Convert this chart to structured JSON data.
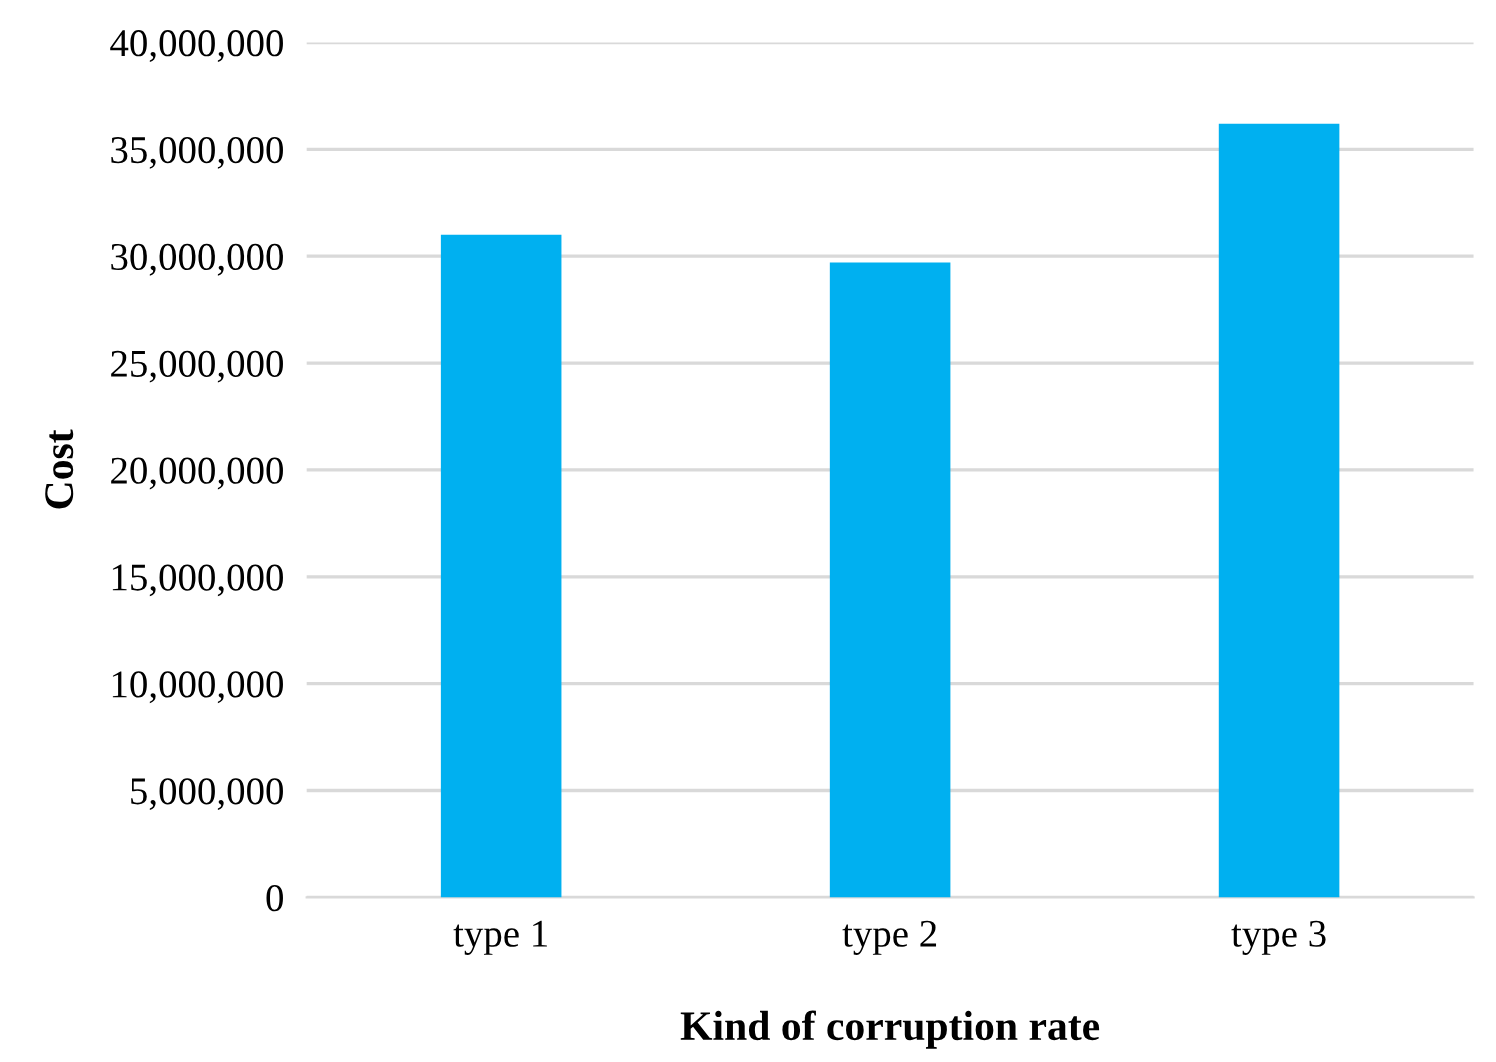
{
  "chart_data": {
    "type": "bar",
    "xlabel": "Kind of corruption rate",
    "ylabel": "Cost",
    "categories": [
      "type 1",
      "type 2",
      "type 3"
    ],
    "values": [
      31000000,
      29700000,
      36200000
    ],
    "color": "#00b0f0",
    "ylim": [
      0,
      40000000
    ],
    "yticks": [
      {
        "value": 0,
        "label": "0"
      },
      {
        "value": 5000000,
        "label": "5,000,000"
      },
      {
        "value": 10000000,
        "label": "10,000,000"
      },
      {
        "value": 15000000,
        "label": "15,000,000"
      },
      {
        "value": 20000000,
        "label": "20,000,000"
      },
      {
        "value": 25000000,
        "label": "25,000,000"
      },
      {
        "value": 30000000,
        "label": "30,000,000"
      },
      {
        "value": 35000000,
        "label": "35,000,000"
      },
      {
        "value": 40000000,
        "label": "40,000,000"
      }
    ],
    "grid": "y",
    "legend": false
  }
}
